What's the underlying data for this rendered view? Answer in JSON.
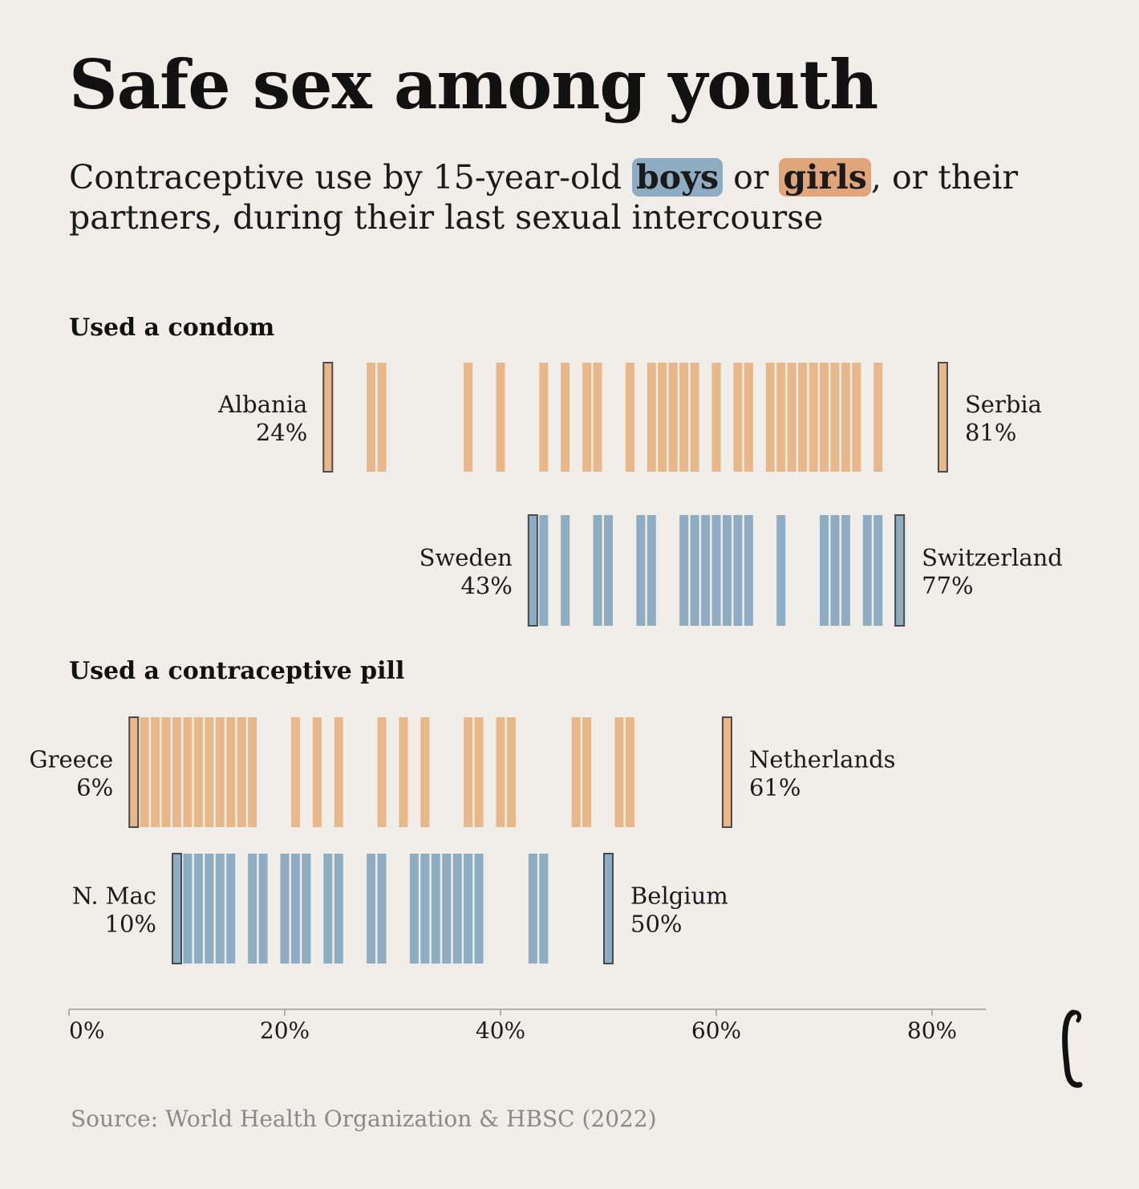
{
  "title": "Safe sex among youth",
  "subtitle": {
    "before": "Contraceptive use by 15-year-old ",
    "boys": "boys",
    "middle": " or ",
    "girls": "girls",
    "after": ", or their partners, during their last sexual intercourse"
  },
  "source": "Source: World Health Organization & HBSC (2022)",
  "colors": {
    "boys": "#8eacc2",
    "girls": "#e8b78a",
    "extreme_outline": "#4a4a4a",
    "axis": "#9a9a9a",
    "background": "#f1eeea"
  },
  "chart_data": {
    "type": "strip",
    "unit": "%",
    "xlim": [
      0,
      85
    ],
    "x_ticks": [
      0,
      20,
      40,
      60,
      80
    ],
    "x_tick_labels": [
      "0%",
      "20%",
      "40%",
      "60%",
      "80%"
    ],
    "grid": false,
    "panels": [
      {
        "label": "Used a condom",
        "series": [
          {
            "group": "girls",
            "values": [
              24,
              28,
              29,
              37,
              40,
              44,
              46,
              48,
              49,
              52,
              54,
              55,
              56,
              57,
              58,
              60,
              62,
              63,
              65,
              66,
              67,
              68,
              69,
              70,
              71,
              72,
              73,
              75,
              81
            ],
            "min": {
              "country": "Albania",
              "value": 24,
              "label": "24%"
            },
            "max": {
              "country": "Serbia",
              "value": 81,
              "label": "81%"
            }
          },
          {
            "group": "boys",
            "values": [
              43,
              44,
              46,
              49,
              50,
              53,
              54,
              57,
              58,
              59,
              60,
              61,
              62,
              63,
              66,
              70,
              71,
              72,
              74,
              75,
              77
            ],
            "min": {
              "country": "Sweden",
              "value": 43,
              "label": "43%"
            },
            "max": {
              "country": "Switzerland",
              "value": 77,
              "label": "77%"
            }
          }
        ]
      },
      {
        "label": "Used a contraceptive pill",
        "series": [
          {
            "group": "girls",
            "values": [
              6,
              7,
              8,
              9,
              10,
              11,
              12,
              13,
              14,
              15,
              16,
              17,
              21,
              23,
              25,
              29,
              31,
              33,
              37,
              38,
              40,
              41,
              47,
              48,
              51,
              52,
              61
            ],
            "min": {
              "country": "Greece",
              "value": 6,
              "label": "6%"
            },
            "max": {
              "country": "Netherlands",
              "value": 61,
              "label": "61%"
            }
          },
          {
            "group": "boys",
            "values": [
              10,
              11,
              12,
              13,
              14,
              15,
              17,
              18,
              20,
              21,
              22,
              24,
              25,
              28,
              29,
              32,
              33,
              34,
              35,
              36,
              37,
              38,
              43,
              44,
              50
            ],
            "min": {
              "country": "N. Mac",
              "value": 10,
              "label": "10%"
            },
            "max": {
              "country": "Belgium",
              "value": 50,
              "label": "50%"
            }
          }
        ]
      }
    ]
  }
}
